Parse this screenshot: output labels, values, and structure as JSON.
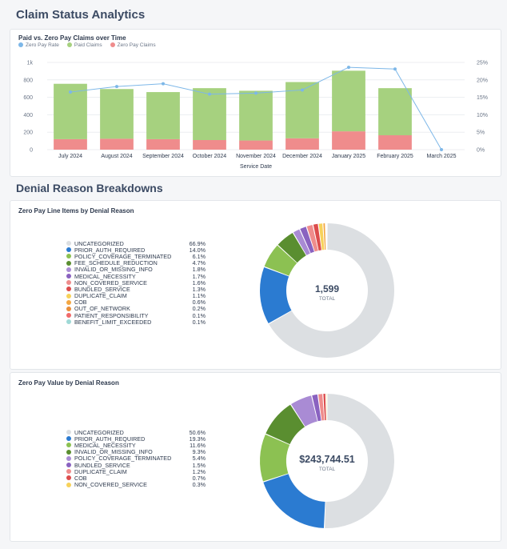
{
  "page": {
    "title": "Claim Status Analytics",
    "section_title": "Denial Reason Breakdowns"
  },
  "chart_data": [
    {
      "type": "bar",
      "title": "Paid vs. Zero Pay Claims over Time",
      "xlabel": "Service Date",
      "ylabel": "",
      "categories": [
        "July 2024",
        "August 2024",
        "September 2024",
        "October 2024",
        "November 2024",
        "December 2024",
        "January 2025",
        "February 2025",
        "March 2025"
      ],
      "series": [
        {
          "name": "Zero Pay Claims",
          "color": "#ef8c8c",
          "values": [
            120,
            125,
            120,
            110,
            105,
            130,
            210,
            165,
            0
          ]
        },
        {
          "name": "Paid Claims",
          "color": "#a6d17f",
          "values": [
            635,
            570,
            540,
            595,
            570,
            645,
            695,
            540,
            0
          ]
        },
        {
          "name": "Zero Pay Rate",
          "color": "#7db7e8",
          "line": true,
          "values": [
            16.5,
            18.1,
            18.9,
            15.9,
            16.2,
            17.1,
            23.6,
            23.1,
            0
          ]
        }
      ],
      "ylim": [
        0,
        1000
      ],
      "y_ticks": [
        "0",
        "200",
        "400",
        "600",
        "800",
        "1k"
      ],
      "y2lim": [
        0,
        25
      ],
      "y2_ticks": [
        "0%",
        "5%",
        "10%",
        "15%",
        "20%",
        "25%"
      ]
    },
    {
      "type": "pie",
      "title": "Zero Pay Line Items by Denial Reason",
      "center_value": "1,599",
      "center_label": "TOTAL",
      "labels": [
        "UNCATEGORIZED",
        "PRIOR_AUTH_REQUIRED",
        "POLICY_COVERAGE_TERMINATED",
        "FEE_SCHEDULE_REDUCTION",
        "INVALID_OR_MISSING_INFO",
        "MEDICAL_NECESSITY",
        "NON_COVERED_SERVICE",
        "BUNDLED_SERVICE",
        "DUPLICATE_CLAIM",
        "COB",
        "OUT_OF_NETWORK",
        "PATIENT_RESPONSIBILITY",
        "BENEFIT_LIMIT_EXCEEDED"
      ],
      "pct_labels": [
        "66.9%",
        "14.0%",
        "6.1%",
        "4.7%",
        "1.8%",
        "1.7%",
        "1.6%",
        "1.3%",
        "1.1%",
        "0.6%",
        "0.2%",
        "0.1%",
        "0.1%"
      ],
      "values": [
        66.9,
        14.0,
        6.1,
        4.7,
        1.8,
        1.7,
        1.6,
        1.3,
        1.1,
        0.6,
        0.2,
        0.1,
        0.1
      ],
      "colors": [
        "#dcdfe2",
        "#2b7bd1",
        "#8cc152",
        "#5a8e30",
        "#a98bd4",
        "#8a62c0",
        "#ef8c8c",
        "#dc4c4c",
        "#f7d25a",
        "#f4a742",
        "#e98e3a",
        "#f06a6a",
        "#9fd9d6"
      ]
    },
    {
      "type": "pie",
      "title": "Zero Pay Value by Denial Reason",
      "center_value": "$243,744.51",
      "center_label": "TOTAL",
      "labels": [
        "UNCATEGORIZED",
        "PRIOR_AUTH_REQUIRED",
        "MEDICAL_NECESSITY",
        "INVALID_OR_MISSING_INFO",
        "POLICY_COVERAGE_TERMINATED",
        "BUNDLED_SERVICE",
        "DUPLICATE_CLAIM",
        "COB",
        "NON_COVERED_SERVICE"
      ],
      "pct_labels": [
        "50.6%",
        "19.3%",
        "11.6%",
        "9.3%",
        "5.4%",
        "1.5%",
        "1.2%",
        "0.7%",
        "0.3%"
      ],
      "values": [
        50.6,
        19.3,
        11.6,
        9.3,
        5.4,
        1.5,
        1.2,
        0.7,
        0.3
      ],
      "colors": [
        "#dcdfe2",
        "#2b7bd1",
        "#8cc152",
        "#5a8e30",
        "#a98bd4",
        "#8a62c0",
        "#ef8c8c",
        "#dc4c4c",
        "#f7d25a"
      ]
    }
  ]
}
